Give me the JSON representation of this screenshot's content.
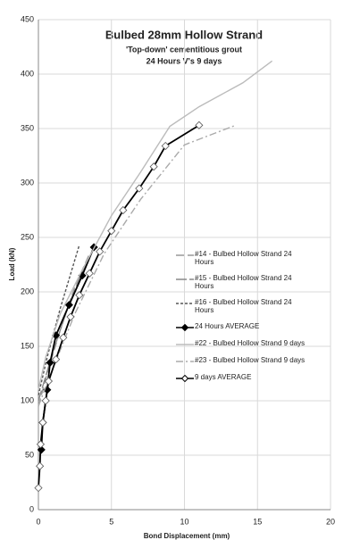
{
  "chart_data": {
    "type": "line",
    "title": "Bulbed 28mm Hollow Strand",
    "subtitle": [
      "'Top-down' cementitious grout",
      "24 Hours V's 9 days"
    ],
    "x_label": "Bond Displacement (mm)",
    "y_label": "Load (kN)",
    "xlim": [
      0,
      20
    ],
    "xticks": [
      0,
      5,
      10,
      15,
      20
    ],
    "ylim": [
      0,
      450
    ],
    "yticks": [
      0,
      50,
      100,
      150,
      200,
      250,
      300,
      350,
      400,
      450
    ],
    "grid": true,
    "series": [
      {
        "name": "#14 - Bulbed Hollow Strand 24 Hours",
        "color": "#999999",
        "dash": "9,4",
        "x": [
          0,
          0.7,
          1.5,
          2.5,
          3.5
        ],
        "values": [
          95,
          130,
          165,
          205,
          235
        ]
      },
      {
        "name": "#15 - Bulbed Hollow Strand 24 Hours",
        "color": "#888888",
        "dash": "12,3",
        "x": [
          0,
          1,
          2,
          3.2
        ],
        "values": [
          100,
          145,
          185,
          225
        ]
      },
      {
        "name": "#16 - Bulbed Hollow Strand 24 Hours",
        "color": "#555555",
        "dash": "3,2",
        "x": [
          0,
          0.6,
          1.5,
          2.8
        ],
        "values": [
          105,
          140,
          185,
          243
        ]
      },
      {
        "name": "24 Hours  AVERAGE",
        "color": "#000000",
        "marker": "filled",
        "x": [
          0.2,
          0.3,
          0.6,
          0.8,
          1.2,
          2.1,
          3,
          3.8
        ],
        "values": [
          55,
          80,
          110,
          135,
          160,
          188,
          215,
          241
        ]
      },
      {
        "name": "#22 - Bulbed Hollow Strand 9 days",
        "color": "#bbbbbb",
        "x": [
          0,
          0.5,
          1.5,
          3,
          5,
          7,
          9,
          11,
          14,
          16
        ],
        "values": [
          110,
          140,
          180,
          220,
          270,
          310,
          352,
          370,
          392,
          412
        ]
      },
      {
        "name": "#23 - Bulbed Hollow Strand 9 days",
        "color": "#aaaaaa",
        "dash": "8,3,2,3",
        "x": [
          0,
          1,
          2.5,
          4.5,
          7,
          10,
          13.5
        ],
        "values": [
          95,
          130,
          180,
          235,
          285,
          335,
          353
        ]
      },
      {
        "name": "9 days AVERAGE",
        "color": "#000000",
        "marker": "open",
        "x": [
          0,
          0.1,
          0.15,
          0.3,
          0.5,
          0.7,
          1.2,
          1.7,
          2.2,
          2.8,
          3.5,
          4.2,
          5,
          5.8,
          6.9,
          7.9,
          8.7,
          11
        ],
        "values": [
          20,
          40,
          60,
          80,
          100,
          118,
          138,
          158,
          177,
          197,
          217,
          237,
          256,
          275,
          295,
          315,
          334,
          353
        ]
      }
    ]
  }
}
